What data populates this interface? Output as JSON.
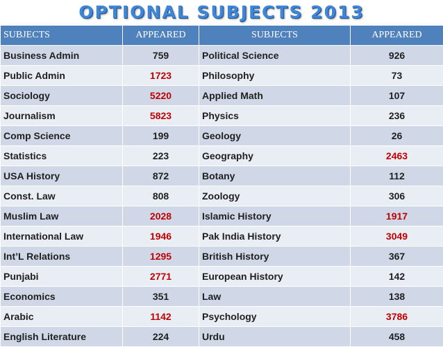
{
  "title": "OPTIONAL SUBJECTS 2013",
  "headers": [
    "SUBJECTS",
    "APPEARED",
    "SUBJECTS",
    "APPEARED"
  ],
  "colors": {
    "header_bg": "#4f81bd",
    "row_odd": "#d0d8e8",
    "row_even": "#e9edf4",
    "highlight": "#c00000"
  },
  "rows": [
    {
      "s1": "Business Admin",
      "a1": "759",
      "s2": "Political Science",
      "a2": "926"
    },
    {
      "s1": "Public Admin",
      "a1": "1723",
      "s2": "Philosophy",
      "a2": "73"
    },
    {
      "s1": "Sociology",
      "a1": "5220",
      "s2": "Applied Math",
      "a2": "107"
    },
    {
      "s1": "Journalism",
      "a1": "5823",
      "s2": "Physics",
      "a2": "236"
    },
    {
      "s1": "Comp Science",
      "a1": "199",
      "s2": "Geology",
      "a2": "26"
    },
    {
      "s1": "Statistics",
      "a1": "223",
      "s2": "Geography",
      "a2": "2463"
    },
    {
      "s1": "USA History",
      "a1": "872",
      "s2": "Botany",
      "a2": "112"
    },
    {
      "s1": "Const. Law",
      "a1": "808",
      "s2": "Zoology",
      "a2": "306"
    },
    {
      "s1": "Muslim Law",
      "a1": "2028",
      "s2": "Islamic History",
      "a2": "1917"
    },
    {
      "s1": "International Law",
      "a1": "1946",
      "s2": "Pak India History",
      "a2": "3049"
    },
    {
      "s1": "Int’L Relations",
      "a1": "1295",
      "s2": "British History",
      "a2": "367"
    },
    {
      "s1": "Punjabi",
      "a1": "2771",
      "s2": "European History",
      "a2": "142"
    },
    {
      "s1": "Economics",
      "a1": "351",
      "s2": "Law",
      "a2": "138"
    },
    {
      "s1": "Arabic",
      "a1": "1142",
      "s2": "Psychology",
      "a2": "3786"
    },
    {
      "s1": "English Literature",
      "a1": "224",
      "s2": "Urdu",
      "a2": "458"
    }
  ]
}
